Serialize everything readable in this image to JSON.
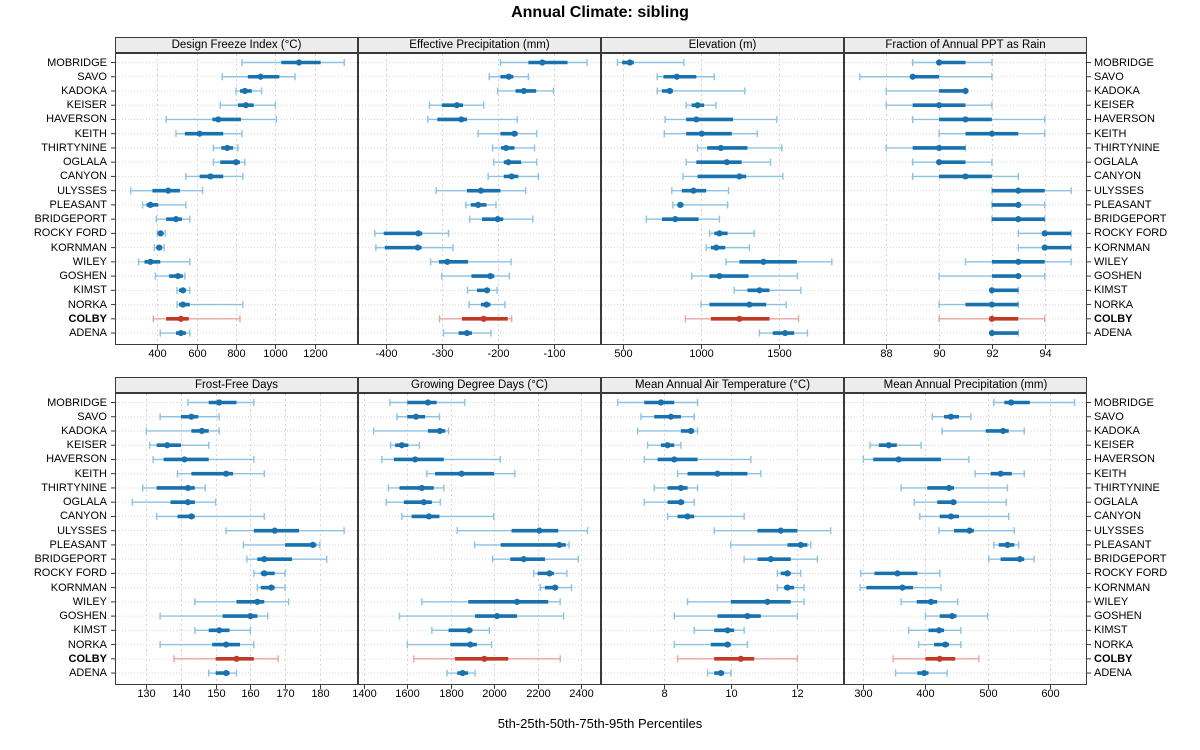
{
  "title": "Annual Climate: sibling",
  "footer": "5th-25th-50th-75th-95th Percentiles",
  "stations": [
    "MOBRIDGE",
    "SAVO",
    "KADOKA",
    "KEISER",
    "HAVERSON",
    "KEITH",
    "THIRTYNINE",
    "OGLALA",
    "CANYON",
    "ULYSSES",
    "PLEASANT",
    "BRIDGEPORT",
    "ROCKY FORD",
    "KORNMAN",
    "WILEY",
    "GOSHEN",
    "KIMST",
    "NORKA",
    "COLBY",
    "ADENA"
  ],
  "highlight_station": "COLBY",
  "colors": {
    "blue": "#1972ad",
    "blue_light": "#8fc2e0",
    "red": "#bf3a27",
    "red_light": "#e5a79e",
    "strip_bg": "#ececec",
    "border": "#3a3a3a",
    "grid": "#d6d6d6"
  },
  "chart_data": [
    {
      "type": "scatter",
      "title": "Design Freeze Index (°C)",
      "xlim": [
        185,
        1420
      ],
      "ticks": [
        400,
        600,
        800,
        1000,
        1200
      ],
      "percentiles": [
        "5th",
        "25th",
        "50th",
        "75th",
        "95th"
      ],
      "values": [
        [
          830,
          1030,
          1120,
          1230,
          1350
        ],
        [
          730,
          860,
          925,
          1020,
          1100
        ],
        [
          800,
          820,
          845,
          880,
          930
        ],
        [
          720,
          810,
          850,
          890,
          1000
        ],
        [
          445,
          680,
          710,
          825,
          1005
        ],
        [
          495,
          540,
          615,
          735,
          830
        ],
        [
          685,
          725,
          755,
          785,
          810
        ],
        [
          685,
          720,
          800,
          820,
          845
        ],
        [
          545,
          615,
          670,
          735,
          835
        ],
        [
          265,
          375,
          455,
          515,
          630
        ],
        [
          325,
          345,
          365,
          405,
          545
        ],
        [
          395,
          445,
          495,
          525,
          565
        ],
        [
          400,
          405,
          417,
          430,
          440
        ],
        [
          385,
          395,
          410,
          420,
          435
        ],
        [
          305,
          335,
          365,
          415,
          565
        ],
        [
          390,
          460,
          505,
          530,
          540
        ],
        [
          500,
          510,
          530,
          545,
          565
        ],
        [
          500,
          510,
          530,
          565,
          835
        ],
        [
          380,
          445,
          520,
          560,
          820
        ],
        [
          415,
          495,
          520,
          545,
          565
        ]
      ]
    },
    {
      "type": "scatter",
      "title": "Effective Precipitation (mm)",
      "xlim": [
        -450,
        -15
      ],
      "ticks": [
        -400,
        -300,
        -200,
        -100
      ],
      "percentiles": [
        "5th",
        "25th",
        "50th",
        "75th",
        "95th"
      ],
      "values": [
        [
          -195,
          -145,
          -120,
          -75,
          -40
        ],
        [
          -215,
          -195,
          -180,
          -172,
          -145
        ],
        [
          -200,
          -168,
          -153,
          -131,
          -100
        ],
        [
          -322,
          -300,
          -273,
          -262,
          -225
        ],
        [
          -325,
          -308,
          -265,
          -255,
          -165
        ],
        [
          -235,
          -195,
          -170,
          -164,
          -130
        ],
        [
          -209,
          -194,
          -185,
          -170,
          -134
        ],
        [
          -207,
          -189,
          -181,
          -158,
          -130
        ],
        [
          -217,
          -189,
          -175,
          -163,
          -127
        ],
        [
          -310,
          -255,
          -230,
          -195,
          -150
        ],
        [
          -257,
          -248,
          -235,
          -220,
          -203
        ],
        [
          -250,
          -228,
          -200,
          -190,
          -137
        ],
        [
          -420,
          -404,
          -342,
          -335,
          -288
        ],
        [
          -418,
          -402,
          -343,
          -336,
          -280
        ],
        [
          -320,
          -305,
          -290,
          -253,
          -176
        ],
        [
          -300,
          -247,
          -213,
          -206,
          -179
        ],
        [
          -254,
          -237,
          -219,
          -215,
          -201
        ],
        [
          -251,
          -230,
          -220,
          -213,
          -187
        ],
        [
          -304,
          -264,
          -225,
          -182,
          -175
        ],
        [
          -297,
          -270,
          -255,
          -246,
          -212
        ]
      ]
    },
    {
      "type": "scatter",
      "title": "Elevation (m)",
      "xlim": [
        360,
        1915
      ],
      "ticks": [
        500,
        1000,
        1500
      ],
      "percentiles": [
        "5th",
        "25th",
        "50th",
        "75th",
        "95th"
      ],
      "values": [
        [
          465,
          495,
          545,
          570,
          890
        ],
        [
          720,
          760,
          845,
          970,
          1085
        ],
        [
          720,
          750,
          800,
          820,
          1280
        ],
        [
          905,
          940,
          978,
          1020,
          1095
        ],
        [
          770,
          905,
          970,
          1205,
          1485
        ],
        [
          765,
          905,
          1005,
          1197,
          1360
        ],
        [
          978,
          1040,
          1127,
          1297,
          1517
        ],
        [
          905,
          970,
          1165,
          1260,
          1445
        ],
        [
          885,
          978,
          1246,
          1289,
          1524
        ],
        [
          813,
          877,
          952,
          1033,
          1176
        ],
        [
          820,
          850,
          867,
          888,
          1170
        ],
        [
          650,
          750,
          835,
          985,
          1118
        ],
        [
          1055,
          1085,
          1118,
          1170,
          1340
        ],
        [
          1033,
          1063,
          1097,
          1155,
          1310
        ],
        [
          1160,
          1246,
          1400,
          1613,
          1837
        ],
        [
          940,
          1054,
          1118,
          1304,
          1617
        ],
        [
          1212,
          1297,
          1374,
          1438,
          1639
        ],
        [
          1000,
          1054,
          1310,
          1417,
          1545
        ],
        [
          900,
          1063,
          1246,
          1438,
          1624
        ],
        [
          1374,
          1459,
          1538,
          1596,
          1681
        ]
      ]
    },
    {
      "type": "scatter",
      "title": "Fraction of Annual PPT as Rain",
      "xlim": [
        86.4,
        95.6
      ],
      "ticks": [
        88,
        90,
        92,
        94
      ],
      "percentiles": [
        "5th",
        "25th",
        "50th",
        "75th",
        "95th"
      ],
      "values": [
        [
          89,
          90,
          90,
          91,
          92
        ],
        [
          87,
          89,
          89,
          90,
          92
        ],
        [
          88,
          90,
          91,
          91,
          91
        ],
        [
          88,
          89,
          90,
          91,
          92
        ],
        [
          89,
          90,
          91,
          92,
          94
        ],
        [
          90,
          91,
          92,
          93,
          94
        ],
        [
          88,
          89,
          90,
          91,
          91
        ],
        [
          89,
          90,
          90,
          91,
          92
        ],
        [
          89,
          90,
          91,
          92,
          93
        ],
        [
          92,
          92,
          93,
          94,
          95
        ],
        [
          92,
          92,
          93,
          93,
          94
        ],
        [
          92,
          92,
          93,
          94,
          94
        ],
        [
          93,
          94,
          94,
          95,
          95
        ],
        [
          93,
          94,
          94,
          95,
          95
        ],
        [
          91,
          92,
          93,
          94,
          95
        ],
        [
          90,
          92,
          93,
          93,
          94
        ],
        [
          92,
          92,
          92,
          93,
          93
        ],
        [
          90,
          91,
          92,
          93,
          93
        ],
        [
          90,
          92,
          92,
          93,
          94
        ],
        [
          92,
          92,
          92,
          93,
          93
        ]
      ]
    },
    {
      "type": "scatter",
      "title": "Frost-Free Days",
      "xlim": [
        121,
        191
      ],
      "ticks": [
        130,
        140,
        150,
        160,
        170,
        180
      ],
      "percentiles": [
        "5th",
        "25th",
        "50th",
        "75th",
        "95th"
      ],
      "values": [
        [
          142,
          148,
          151,
          156,
          161
        ],
        [
          134,
          140,
          143,
          145,
          151
        ],
        [
          130,
          143,
          146,
          148,
          151
        ],
        [
          131,
          133,
          136,
          140,
          148
        ],
        [
          132,
          135,
          141,
          148,
          161
        ],
        [
          139,
          143,
          153,
          155,
          164
        ],
        [
          129,
          133,
          142,
          144,
          147
        ],
        [
          126,
          137,
          142,
          144,
          150
        ],
        [
          133,
          139,
          143,
          144,
          164
        ],
        [
          153,
          161,
          167,
          174,
          187
        ],
        [
          158,
          170,
          178,
          179,
          180
        ],
        [
          159,
          162,
          164,
          172,
          182
        ],
        [
          161,
          163,
          164,
          167,
          170
        ],
        [
          162,
          163,
          166,
          167,
          170
        ],
        [
          144,
          156,
          162,
          164,
          171
        ],
        [
          134,
          152,
          160,
          162,
          165
        ],
        [
          144,
          148,
          151,
          154,
          160
        ],
        [
          134,
          149,
          153,
          157,
          161
        ],
        [
          138,
          150,
          156,
          161,
          168
        ],
        [
          148,
          150,
          153,
          154,
          156
        ]
      ]
    },
    {
      "type": "scatter",
      "title": "Growing Degree Days (°C)",
      "xlim": [
        1373,
        2492
      ],
      "ticks": [
        1400,
        1600,
        1800,
        2000,
        2200,
        2400
      ],
      "percentiles": [
        "5th",
        "25th",
        "50th",
        "75th",
        "95th"
      ],
      "values": [
        [
          1520,
          1600,
          1695,
          1735,
          1865
        ],
        [
          1553,
          1600,
          1640,
          1682,
          1748
        ],
        [
          1445,
          1695,
          1750,
          1775,
          1790
        ],
        [
          1523,
          1544,
          1575,
          1605,
          1656
        ],
        [
          1483,
          1538,
          1636,
          1768,
          2028
        ],
        [
          1690,
          1728,
          1850,
          2000,
          2095
        ],
        [
          1513,
          1564,
          1667,
          1722,
          1768
        ],
        [
          1503,
          1584,
          1676,
          1713,
          1752
        ],
        [
          1575,
          1620,
          1700,
          1748,
          1998
        ],
        [
          1830,
          2080,
          2208,
          2295,
          2430
        ],
        [
          1910,
          2030,
          2300,
          2330,
          2345
        ],
        [
          1993,
          2074,
          2136,
          2234,
          2387
        ],
        [
          2182,
          2200,
          2255,
          2275,
          2335
        ],
        [
          2212,
          2234,
          2280,
          2295,
          2356
        ],
        [
          1667,
          1881,
          2105,
          2249,
          2304
        ],
        [
          1564,
          1912,
          2013,
          2105,
          2320
        ],
        [
          1713,
          1790,
          1885,
          1900,
          1978
        ],
        [
          1600,
          1798,
          1890,
          1920,
          1988
        ],
        [
          1630,
          1820,
          1955,
          2065,
          2304
        ],
        [
          1783,
          1830,
          1855,
          1880,
          1912
        ]
      ]
    },
    {
      "type": "scatter",
      "title": "Mean Annual Air Temperature (°C)",
      "xlim": [
        6.1,
        13.4
      ],
      "ticks": [
        8,
        10,
        12
      ],
      "percentiles": [
        "5th",
        "25th",
        "50th",
        "75th",
        "95th"
      ],
      "values": [
        [
          6.6,
          7.4,
          7.9,
          8.3,
          9.0
        ],
        [
          7.3,
          7.7,
          8.2,
          8.5,
          8.9
        ],
        [
          7.2,
          8.5,
          8.8,
          8.9,
          9.0
        ],
        [
          7.5,
          7.9,
          8.1,
          8.3,
          8.5
        ],
        [
          7.4,
          7.8,
          8.3,
          9.0,
          10.6
        ],
        [
          8.4,
          8.7,
          9.6,
          10.5,
          10.9
        ],
        [
          7.7,
          8.1,
          8.5,
          8.7,
          9.0
        ],
        [
          7.4,
          8.1,
          8.5,
          8.6,
          8.9
        ],
        [
          8.1,
          8.4,
          8.7,
          8.9,
          10.4
        ],
        [
          9.5,
          10.8,
          11.5,
          12.0,
          13.0
        ],
        [
          10.0,
          11.7,
          12.1,
          12.3,
          12.4
        ],
        [
          10.4,
          10.8,
          11.2,
          11.8,
          12.6
        ],
        [
          11.4,
          11.5,
          11.7,
          11.8,
          12.1
        ],
        [
          11.4,
          11.6,
          11.7,
          11.9,
          12.2
        ],
        [
          8.7,
          10.0,
          11.1,
          11.8,
          12.2
        ],
        [
          8.3,
          9.6,
          10.5,
          10.9,
          12.0
        ],
        [
          8.9,
          9.5,
          9.9,
          10.1,
          10.4
        ],
        [
          8.3,
          9.4,
          9.9,
          10.0,
          10.5
        ],
        [
          8.4,
          9.5,
          10.3,
          10.7,
          12.0
        ],
        [
          9.3,
          9.5,
          9.7,
          9.8,
          10.0
        ]
      ]
    },
    {
      "type": "scatter",
      "title": "Mean Annual Precipitation (mm)",
      "xlim": [
        269,
        660
      ],
      "ticks": [
        300,
        400,
        500,
        600
      ],
      "percentiles": [
        "5th",
        "25th",
        "50th",
        "75th",
        "95th"
      ],
      "values": [
        [
          510,
          527,
          538,
          568,
          640
        ],
        [
          411,
          430,
          441,
          454,
          473
        ],
        [
          427,
          497,
          525,
          534,
          559
        ],
        [
          311,
          325,
          341,
          354,
          393
        ],
        [
          300,
          316,
          357,
          425,
          470
        ],
        [
          480,
          505,
          521,
          539,
          559
        ],
        [
          361,
          403,
          438,
          446,
          532
        ],
        [
          382,
          419,
          445,
          450,
          530
        ],
        [
          391,
          423,
          441,
          454,
          534
        ],
        [
          422,
          446,
          471,
          478,
          543
        ],
        [
          510,
          518,
          532,
          543,
          550
        ],
        [
          502,
          521,
          552,
          559,
          575
        ],
        [
          296,
          318,
          355,
          387,
          423
        ],
        [
          295,
          305,
          363,
          380,
          425
        ],
        [
          361,
          386,
          409,
          419,
          452
        ],
        [
          400,
          423,
          443,
          450,
          500
        ],
        [
          373,
          405,
          422,
          430,
          457
        ],
        [
          389,
          414,
          432,
          438,
          457
        ],
        [
          348,
          400,
          423,
          448,
          486
        ],
        [
          352,
          387,
          398,
          405,
          435
        ]
      ]
    }
  ]
}
